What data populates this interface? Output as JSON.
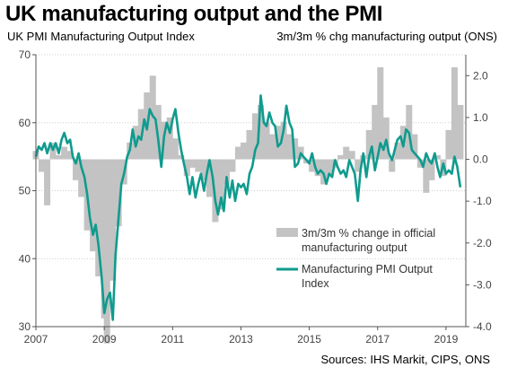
{
  "title": "UK manufacturing output and the PMI",
  "subtitle_left": "UK PMI Manufacturing Output Index",
  "subtitle_right": "3m/3m % chg manufacturing output (ONS)",
  "source": "Sources: IHS Markit, CIPS, ONS",
  "colors": {
    "pmi_line": "#0f9b8e",
    "bars": "#c3c3c3",
    "grid": "#cccccc"
  },
  "chart_data": {
    "type": "bar+line",
    "title": "UK manufacturing output and the PMI",
    "x_range": [
      2007.0,
      2019.58
    ],
    "x_ticks": [
      {
        "value": 2007,
        "label": "2007"
      },
      {
        "value": 2009,
        "label": "2009"
      },
      {
        "value": 2011,
        "label": "2011"
      },
      {
        "value": 2013,
        "label": "2013"
      },
      {
        "value": 2015,
        "label": "2015"
      },
      {
        "value": 2017,
        "label": "2017"
      },
      {
        "value": 2019,
        "label": "2019"
      }
    ],
    "left_axis": {
      "label": "UK PMI Manufacturing Output Index",
      "ylim": [
        30,
        70
      ],
      "ticks": [
        {
          "value": 30,
          "label": "30"
        },
        {
          "value": 40,
          "label": "40"
        },
        {
          "value": 50,
          "label": "50"
        },
        {
          "value": 60,
          "label": "60"
        },
        {
          "value": 70,
          "label": "70"
        }
      ]
    },
    "right_axis": {
      "label": "3m/3m % chg manufacturing output (ONS)",
      "ylim": [
        -4.0,
        2.5
      ],
      "ticks": [
        {
          "value": 2.0,
          "label": "2.0"
        },
        {
          "value": 1.0,
          "label": "1.0"
        },
        {
          "value": 0.0,
          "label": "0.0"
        },
        {
          "value": -1.0,
          "label": "-1.0"
        },
        {
          "value": -2.0,
          "label": "-2.0"
        },
        {
          "value": -3.0,
          "label": "-3.0"
        },
        {
          "value": -4.0,
          "label": "-4.0"
        }
      ]
    },
    "legend": [
      {
        "name": "3m/3m % change in official",
        "name2": "manufacturing output",
        "kind": "bar"
      },
      {
        "name": "Manufacturing PMI Output",
        "name2": "Index",
        "kind": "line"
      }
    ],
    "series": [
      {
        "name": "3m/3m % change in official manufacturing output",
        "axis": "right",
        "kind": "bar",
        "values": [
          {
            "x": 2007.0,
            "y": 0.2
          },
          {
            "x": 2007.17,
            "y": -0.3
          },
          {
            "x": 2007.33,
            "y": -1.1
          },
          {
            "x": 2007.5,
            "y": 0.4
          },
          {
            "x": 2007.67,
            "y": 0.1
          },
          {
            "x": 2007.83,
            "y": 0.3
          },
          {
            "x": 2008.0,
            "y": 0.2
          },
          {
            "x": 2008.17,
            "y": -0.5
          },
          {
            "x": 2008.33,
            "y": -0.9
          },
          {
            "x": 2008.5,
            "y": -1.7
          },
          {
            "x": 2008.67,
            "y": -2.2
          },
          {
            "x": 2008.83,
            "y": -2.8
          },
          {
            "x": 2009.0,
            "y": -3.8
          },
          {
            "x": 2009.08,
            "y": -4.4
          },
          {
            "x": 2009.25,
            "y": -2.9
          },
          {
            "x": 2009.42,
            "y": -1.6
          },
          {
            "x": 2009.58,
            "y": -0.6
          },
          {
            "x": 2009.75,
            "y": 0.4
          },
          {
            "x": 2009.92,
            "y": 0.8
          },
          {
            "x": 2010.08,
            "y": 1.2
          },
          {
            "x": 2010.25,
            "y": 1.6
          },
          {
            "x": 2010.42,
            "y": 2.0
          },
          {
            "x": 2010.58,
            "y": 1.3
          },
          {
            "x": 2010.75,
            "y": 0.9
          },
          {
            "x": 2010.92,
            "y": 1.0
          },
          {
            "x": 2011.08,
            "y": 0.5
          },
          {
            "x": 2011.25,
            "y": 0.1
          },
          {
            "x": 2011.42,
            "y": -0.4
          },
          {
            "x": 2011.58,
            "y": -0.2
          },
          {
            "x": 2011.75,
            "y": -0.3
          },
          {
            "x": 2011.92,
            "y": -0.5
          },
          {
            "x": 2012.08,
            "y": -0.9
          },
          {
            "x": 2012.25,
            "y": -1.5
          },
          {
            "x": 2012.42,
            "y": -1.2
          },
          {
            "x": 2012.58,
            "y": -0.6
          },
          {
            "x": 2012.75,
            "y": -0.3
          },
          {
            "x": 2012.92,
            "y": 0.3
          },
          {
            "x": 2013.08,
            "y": 0.4
          },
          {
            "x": 2013.25,
            "y": 0.7
          },
          {
            "x": 2013.42,
            "y": 1.1
          },
          {
            "x": 2013.58,
            "y": 1.3
          },
          {
            "x": 2013.75,
            "y": 0.9
          },
          {
            "x": 2013.92,
            "y": 0.6
          },
          {
            "x": 2014.08,
            "y": 0.8
          },
          {
            "x": 2014.25,
            "y": 0.9
          },
          {
            "x": 2014.42,
            "y": 0.6
          },
          {
            "x": 2014.58,
            "y": 0.5
          },
          {
            "x": 2014.75,
            "y": 0.3
          },
          {
            "x": 2014.92,
            "y": -0.1
          },
          {
            "x": 2015.08,
            "y": -0.3
          },
          {
            "x": 2015.25,
            "y": -0.4
          },
          {
            "x": 2015.42,
            "y": -0.6
          },
          {
            "x": 2015.58,
            "y": -0.4
          },
          {
            "x": 2015.75,
            "y": -0.2
          },
          {
            "x": 2015.92,
            "y": 0.1
          },
          {
            "x": 2016.08,
            "y": 0.3
          },
          {
            "x": 2016.25,
            "y": 0.2
          },
          {
            "x": 2016.42,
            "y": -0.3
          },
          {
            "x": 2016.58,
            "y": 0.1
          },
          {
            "x": 2016.75,
            "y": 0.7
          },
          {
            "x": 2016.92,
            "y": 1.3
          },
          {
            "x": 2017.08,
            "y": 2.2
          },
          {
            "x": 2017.25,
            "y": 1.0
          },
          {
            "x": 2017.42,
            "y": -0.3
          },
          {
            "x": 2017.58,
            "y": 0.4
          },
          {
            "x": 2017.75,
            "y": 0.8
          },
          {
            "x": 2017.92,
            "y": 1.3
          },
          {
            "x": 2018.08,
            "y": 0.6
          },
          {
            "x": 2018.25,
            "y": -0.2
          },
          {
            "x": 2018.42,
            "y": -0.8
          },
          {
            "x": 2018.58,
            "y": -0.5
          },
          {
            "x": 2018.75,
            "y": 0.1
          },
          {
            "x": 2018.92,
            "y": -0.4
          },
          {
            "x": 2019.08,
            "y": 0.7
          },
          {
            "x": 2019.25,
            "y": 2.2
          },
          {
            "x": 2019.42,
            "y": 1.3
          }
        ]
      },
      {
        "name": "Manufacturing PMI Output Index",
        "axis": "left",
        "kind": "line",
        "values": [
          {
            "x": 2007.0,
            "y": 55.0
          },
          {
            "x": 2007.08,
            "y": 56.5
          },
          {
            "x": 2007.17,
            "y": 56.0
          },
          {
            "x": 2007.25,
            "y": 57.0
          },
          {
            "x": 2007.33,
            "y": 55.5
          },
          {
            "x": 2007.42,
            "y": 57.0
          },
          {
            "x": 2007.5,
            "y": 56.0
          },
          {
            "x": 2007.58,
            "y": 57.0
          },
          {
            "x": 2007.67,
            "y": 55.5
          },
          {
            "x": 2007.75,
            "y": 57.5
          },
          {
            "x": 2007.83,
            "y": 58.5
          },
          {
            "x": 2007.92,
            "y": 57.0
          },
          {
            "x": 2008.0,
            "y": 57.5
          },
          {
            "x": 2008.08,
            "y": 55.0
          },
          {
            "x": 2008.17,
            "y": 54.0
          },
          {
            "x": 2008.25,
            "y": 55.5
          },
          {
            "x": 2008.33,
            "y": 53.5
          },
          {
            "x": 2008.42,
            "y": 52.0
          },
          {
            "x": 2008.5,
            "y": 49.5
          },
          {
            "x": 2008.58,
            "y": 46.0
          },
          {
            "x": 2008.67,
            "y": 43.5
          },
          {
            "x": 2008.75,
            "y": 45.0
          },
          {
            "x": 2008.83,
            "y": 42.0
          },
          {
            "x": 2008.92,
            "y": 37.5
          },
          {
            "x": 2009.0,
            "y": 32.0
          },
          {
            "x": 2009.08,
            "y": 34.0
          },
          {
            "x": 2009.17,
            "y": 35.0
          },
          {
            "x": 2009.25,
            "y": 31.0
          },
          {
            "x": 2009.33,
            "y": 40.5
          },
          {
            "x": 2009.42,
            "y": 46.0
          },
          {
            "x": 2009.5,
            "y": 51.0
          },
          {
            "x": 2009.58,
            "y": 52.5
          },
          {
            "x": 2009.67,
            "y": 55.0
          },
          {
            "x": 2009.75,
            "y": 56.0
          },
          {
            "x": 2009.83,
            "y": 59.0
          },
          {
            "x": 2009.92,
            "y": 56.5
          },
          {
            "x": 2010.0,
            "y": 58.0
          },
          {
            "x": 2010.08,
            "y": 57.5
          },
          {
            "x": 2010.17,
            "y": 60.5
          },
          {
            "x": 2010.25,
            "y": 59.0
          },
          {
            "x": 2010.33,
            "y": 62.0
          },
          {
            "x": 2010.42,
            "y": 61.0
          },
          {
            "x": 2010.5,
            "y": 60.5
          },
          {
            "x": 2010.58,
            "y": 57.5
          },
          {
            "x": 2010.67,
            "y": 53.5
          },
          {
            "x": 2010.75,
            "y": 58.0
          },
          {
            "x": 2010.83,
            "y": 60.0
          },
          {
            "x": 2010.92,
            "y": 58.5
          },
          {
            "x": 2011.0,
            "y": 60.5
          },
          {
            "x": 2011.08,
            "y": 62.0
          },
          {
            "x": 2011.17,
            "y": 58.5
          },
          {
            "x": 2011.25,
            "y": 56.0
          },
          {
            "x": 2011.33,
            "y": 54.0
          },
          {
            "x": 2011.42,
            "y": 52.0
          },
          {
            "x": 2011.5,
            "y": 49.5
          },
          {
            "x": 2011.58,
            "y": 52.0
          },
          {
            "x": 2011.67,
            "y": 49.0
          },
          {
            "x": 2011.75,
            "y": 51.0
          },
          {
            "x": 2011.83,
            "y": 52.5
          },
          {
            "x": 2011.92,
            "y": 50.0
          },
          {
            "x": 2012.0,
            "y": 52.5
          },
          {
            "x": 2012.08,
            "y": 54.5
          },
          {
            "x": 2012.17,
            "y": 52.0
          },
          {
            "x": 2012.25,
            "y": 48.5
          },
          {
            "x": 2012.33,
            "y": 46.5
          },
          {
            "x": 2012.42,
            "y": 49.0
          },
          {
            "x": 2012.5,
            "y": 47.0
          },
          {
            "x": 2012.58,
            "y": 52.0
          },
          {
            "x": 2012.67,
            "y": 49.0
          },
          {
            "x": 2012.75,
            "y": 51.5
          },
          {
            "x": 2012.83,
            "y": 48.5
          },
          {
            "x": 2012.92,
            "y": 51.0
          },
          {
            "x": 2013.0,
            "y": 50.5
          },
          {
            "x": 2013.08,
            "y": 51.0
          },
          {
            "x": 2013.17,
            "y": 49.5
          },
          {
            "x": 2013.25,
            "y": 52.5
          },
          {
            "x": 2013.33,
            "y": 53.5
          },
          {
            "x": 2013.42,
            "y": 56.0
          },
          {
            "x": 2013.5,
            "y": 57.0
          },
          {
            "x": 2013.58,
            "y": 64.0
          },
          {
            "x": 2013.67,
            "y": 60.0
          },
          {
            "x": 2013.75,
            "y": 59.5
          },
          {
            "x": 2013.83,
            "y": 61.5
          },
          {
            "x": 2013.92,
            "y": 60.0
          },
          {
            "x": 2014.0,
            "y": 59.5
          },
          {
            "x": 2014.08,
            "y": 56.5
          },
          {
            "x": 2014.17,
            "y": 57.0
          },
          {
            "x": 2014.25,
            "y": 59.0
          },
          {
            "x": 2014.33,
            "y": 62.5
          },
          {
            "x": 2014.42,
            "y": 60.0
          },
          {
            "x": 2014.5,
            "y": 59.0
          },
          {
            "x": 2014.58,
            "y": 53.5
          },
          {
            "x": 2014.67,
            "y": 54.0
          },
          {
            "x": 2014.75,
            "y": 55.5
          },
          {
            "x": 2014.83,
            "y": 55.0
          },
          {
            "x": 2014.92,
            "y": 54.5
          },
          {
            "x": 2015.0,
            "y": 54.0
          },
          {
            "x": 2015.08,
            "y": 55.5
          },
          {
            "x": 2015.17,
            "y": 53.5
          },
          {
            "x": 2015.25,
            "y": 52.5
          },
          {
            "x": 2015.33,
            "y": 53.0
          },
          {
            "x": 2015.42,
            "y": 52.5
          },
          {
            "x": 2015.5,
            "y": 51.0
          },
          {
            "x": 2015.58,
            "y": 52.5
          },
          {
            "x": 2015.67,
            "y": 52.0
          },
          {
            "x": 2015.75,
            "y": 54.5
          },
          {
            "x": 2015.83,
            "y": 53.5
          },
          {
            "x": 2015.92,
            "y": 52.5
          },
          {
            "x": 2016.0,
            "y": 53.0
          },
          {
            "x": 2016.08,
            "y": 52.0
          },
          {
            "x": 2016.17,
            "y": 54.5
          },
          {
            "x": 2016.25,
            "y": 53.5
          },
          {
            "x": 2016.33,
            "y": 52.5
          },
          {
            "x": 2016.42,
            "y": 48.5
          },
          {
            "x": 2016.5,
            "y": 53.0
          },
          {
            "x": 2016.58,
            "y": 55.5
          },
          {
            "x": 2016.67,
            "y": 52.0
          },
          {
            "x": 2016.75,
            "y": 55.0
          },
          {
            "x": 2016.83,
            "y": 56.5
          },
          {
            "x": 2016.92,
            "y": 53.0
          },
          {
            "x": 2017.0,
            "y": 55.0
          },
          {
            "x": 2017.08,
            "y": 57.0
          },
          {
            "x": 2017.17,
            "y": 56.0
          },
          {
            "x": 2017.25,
            "y": 57.5
          },
          {
            "x": 2017.33,
            "y": 55.5
          },
          {
            "x": 2017.42,
            "y": 54.5
          },
          {
            "x": 2017.5,
            "y": 56.0
          },
          {
            "x": 2017.58,
            "y": 57.5
          },
          {
            "x": 2017.67,
            "y": 58.0
          },
          {
            "x": 2017.75,
            "y": 56.5
          },
          {
            "x": 2017.83,
            "y": 59.0
          },
          {
            "x": 2017.92,
            "y": 58.5
          },
          {
            "x": 2018.0,
            "y": 56.0
          },
          {
            "x": 2018.08,
            "y": 55.5
          },
          {
            "x": 2018.17,
            "y": 55.0
          },
          {
            "x": 2018.25,
            "y": 54.5
          },
          {
            "x": 2018.33,
            "y": 53.5
          },
          {
            "x": 2018.42,
            "y": 55.5
          },
          {
            "x": 2018.5,
            "y": 54.5
          },
          {
            "x": 2018.58,
            "y": 54.0
          },
          {
            "x": 2018.67,
            "y": 55.5
          },
          {
            "x": 2018.75,
            "y": 53.5
          },
          {
            "x": 2018.83,
            "y": 52.0
          },
          {
            "x": 2018.92,
            "y": 54.0
          },
          {
            "x": 2019.0,
            "y": 52.5
          },
          {
            "x": 2019.08,
            "y": 53.0
          },
          {
            "x": 2019.17,
            "y": 52.5
          },
          {
            "x": 2019.25,
            "y": 55.0
          },
          {
            "x": 2019.33,
            "y": 53.5
          },
          {
            "x": 2019.42,
            "y": 50.5
          }
        ]
      }
    ]
  }
}
